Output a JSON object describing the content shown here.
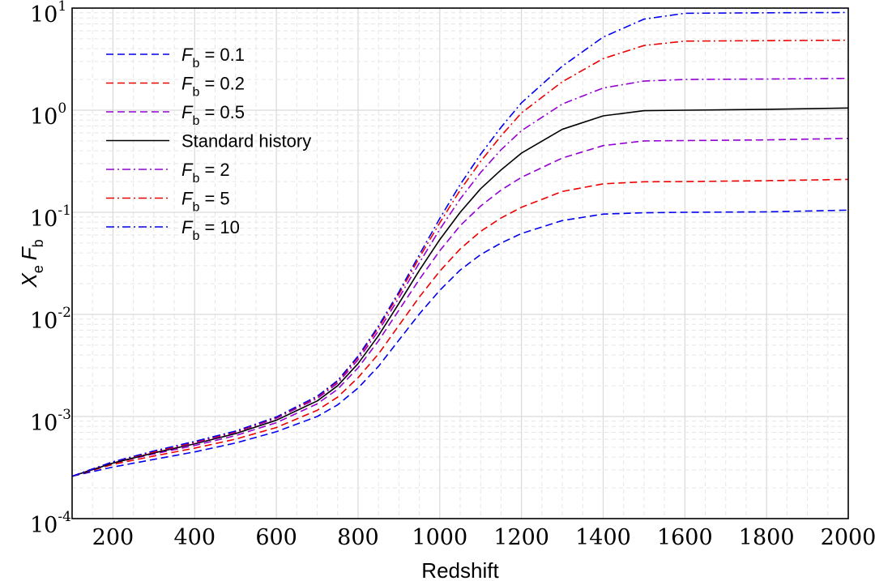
{
  "chart_data": {
    "type": "line",
    "xlabel": "Redshift",
    "ylabel": {
      "main": "X",
      "main_sub": "e",
      "factor": "F",
      "factor_sub": "b"
    },
    "xlim": [
      100,
      2000
    ],
    "ylim": [
      0.0001,
      10
    ],
    "yscale": "log",
    "grid": true,
    "legend_position": "top-left",
    "x_ticks": [
      "200",
      "400",
      "600",
      "800",
      "1000",
      "1200",
      "1400",
      "1600",
      "1800",
      "2000"
    ],
    "y_ticks": [
      {
        "base": "10",
        "exp": "-4"
      },
      {
        "base": "10",
        "exp": "-3"
      },
      {
        "base": "10",
        "exp": "-2"
      },
      {
        "base": "10",
        "exp": "-1"
      },
      {
        "base": "10",
        "exp": "0"
      },
      {
        "base": "10",
        "exp": "1"
      }
    ],
    "x": [
      100,
      200,
      300,
      400,
      500,
      600,
      700,
      750,
      800,
      850,
      900,
      950,
      1000,
      1050,
      1100,
      1150,
      1200,
      1300,
      1400,
      1500,
      1600,
      1800,
      2000
    ],
    "series": [
      {
        "name_prefix": "F",
        "name_sub": "b",
        "name_suffix": " = 0.1",
        "color": "#0000ee",
        "dash": "dashed",
        "values": [
          0.00026,
          0.00032,
          0.00038,
          0.00045,
          0.00055,
          0.00071,
          0.001,
          0.0013,
          0.0019,
          0.0031,
          0.0056,
          0.0101,
          0.0172,
          0.0272,
          0.0385,
          0.05,
          0.062,
          0.083,
          0.096,
          0.099,
          0.1,
          0.101,
          0.105
        ]
      },
      {
        "name_prefix": "F",
        "name_sub": "b",
        "name_suffix": " = 0.2",
        "color": "#ee0000",
        "dash": "dashed",
        "values": [
          0.00026,
          0.00034,
          0.00041,
          0.00049,
          0.0006,
          0.00078,
          0.00115,
          0.00155,
          0.0024,
          0.0041,
          0.0078,
          0.0148,
          0.0265,
          0.0438,
          0.065,
          0.088,
          0.112,
          0.16,
          0.19,
          0.199,
          0.2,
          0.204,
          0.21
        ]
      },
      {
        "name_prefix": "F",
        "name_sub": "b",
        "name_suffix": " = 0.5",
        "color": "#9400d3",
        "dash": "dashed",
        "values": [
          0.00026,
          0.00035,
          0.00043,
          0.00052,
          0.00065,
          0.00087,
          0.00133,
          0.00185,
          0.003,
          0.0055,
          0.011,
          0.022,
          0.042,
          0.074,
          0.115,
          0.165,
          0.22,
          0.34,
          0.45,
          0.5,
          0.504,
          0.512,
          0.53
        ]
      },
      {
        "name": "Standard history",
        "color": "#000000",
        "dash": "solid",
        "values": [
          0.00026,
          0.00035,
          0.00044,
          0.00054,
          0.00068,
          0.00092,
          0.00142,
          0.002,
          0.0033,
          0.0062,
          0.0128,
          0.027,
          0.054,
          0.1,
          0.17,
          0.26,
          0.38,
          0.65,
          0.88,
          0.99,
          1.0,
          1.02,
          1.05
        ]
      },
      {
        "name_prefix": "F",
        "name_sub": "b",
        "name_suffix": " = 2",
        "color": "#9400d3",
        "dash": "dashdot",
        "values": [
          0.00026,
          0.00036,
          0.00045,
          0.00055,
          0.0007,
          0.00096,
          0.0015,
          0.00212,
          0.0036,
          0.0069,
          0.0145,
          0.032,
          0.068,
          0.135,
          0.245,
          0.41,
          0.63,
          1.15,
          1.65,
          1.93,
          2.0,
          2.02,
          2.05
        ]
      },
      {
        "name_prefix": "F",
        "name_sub": "b",
        "name_suffix": " = 5",
        "color": "#ee0000",
        "dash": "dashdot",
        "values": [
          0.00026,
          0.00036,
          0.00045,
          0.00056,
          0.00071,
          0.00098,
          0.00155,
          0.0022,
          0.0038,
          0.0074,
          0.0158,
          0.036,
          0.079,
          0.165,
          0.315,
          0.56,
          0.94,
          1.9,
          3.2,
          4.3,
          4.75,
          4.8,
          4.85
        ]
      },
      {
        "name_prefix": "F",
        "name_sub": "b",
        "name_suffix": " = 10",
        "color": "#0000ee",
        "dash": "dashdot",
        "values": [
          0.00026,
          0.00036,
          0.00046,
          0.00057,
          0.00072,
          0.00099,
          0.00158,
          0.00225,
          0.0039,
          0.0077,
          0.0166,
          0.0385,
          0.087,
          0.187,
          0.37,
          0.68,
          1.18,
          2.7,
          5.2,
          7.8,
          8.9,
          9.0,
          9.05
        ]
      }
    ]
  }
}
